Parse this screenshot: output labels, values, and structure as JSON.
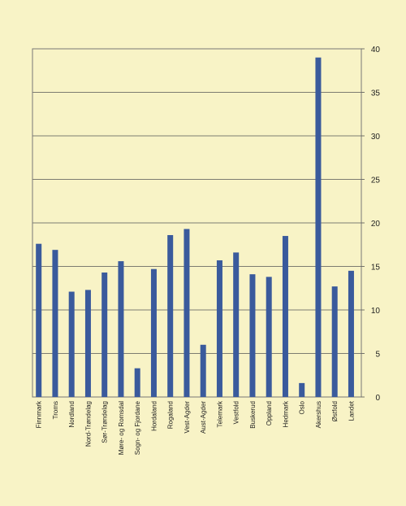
{
  "chart_data": {
    "type": "bar",
    "title": "",
    "xlabel": "",
    "ylabel": "",
    "ylim": [
      0,
      40
    ],
    "yticks": [
      0,
      5,
      10,
      15,
      20,
      25,
      30,
      35,
      40
    ],
    "y_axis_side": "right",
    "grid": true,
    "categories": [
      "Finnmark",
      "Troms",
      "Nordland",
      "Nord-Trøndelag",
      "Sør-Trøndelag",
      "Møre- og Romsdal",
      "Sogn- og Fjordane",
      "Hordaland",
      "Rogaland",
      "Vest-Agder",
      "Aust-Agder",
      "Telemark",
      "Vestfold",
      "Buskerud",
      "Oppland",
      "Hedmark",
      "Oslo",
      "Akershus",
      "Østfold",
      "Landet"
    ],
    "values": [
      17.6,
      16.9,
      12.1,
      12.3,
      14.3,
      15.6,
      3.3,
      14.7,
      18.6,
      19.3,
      6.0,
      15.7,
      16.6,
      14.1,
      13.8,
      18.5,
      1.6,
      39.0,
      12.7,
      14.5
    ],
    "colors": {
      "bar": "#3a5a9c",
      "background": "#f8f3c6",
      "grid": "#555555"
    }
  }
}
